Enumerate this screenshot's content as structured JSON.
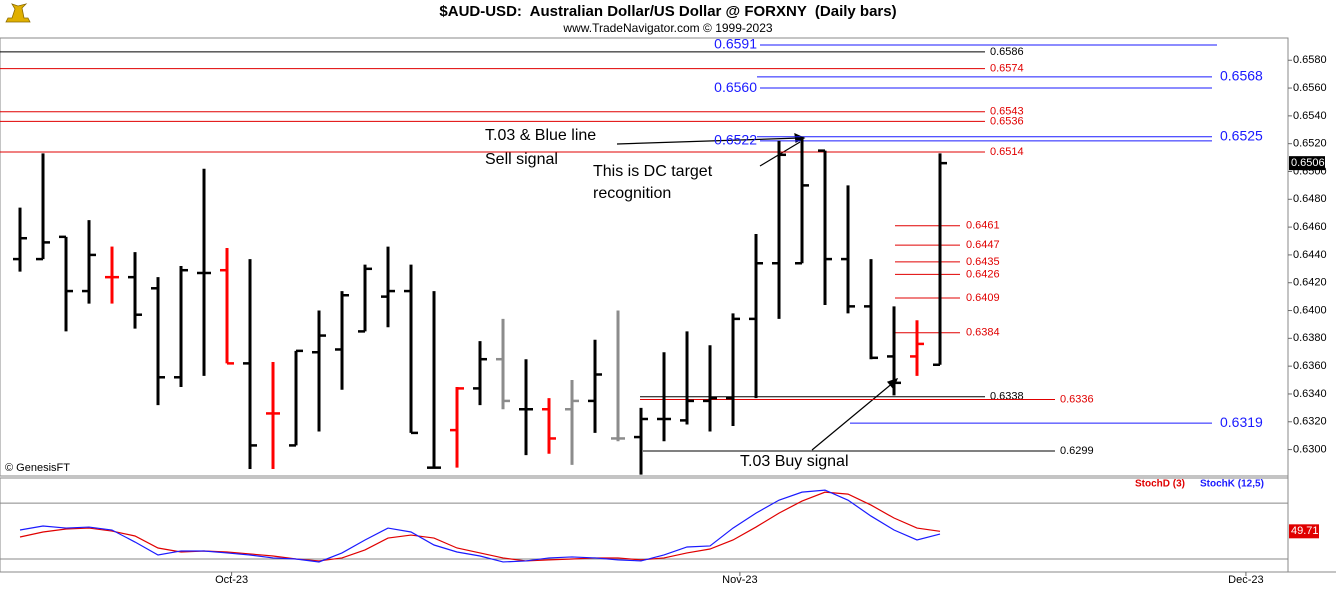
{
  "chart_data": [
    {
      "type": "ohlc",
      "title": "$AUD-USD:  Australian Dollar/US Dollar @ FORXNY  (Daily bars)",
      "subtitle": "www.TradeNavigator.com © 1999-2023",
      "credit": "© GenesisFT",
      "annotations": [
        "T.03 & Blue line",
        "Sell signal",
        "This is DC target",
        "recognition",
        "T.03 Buy signal"
      ],
      "xlim": [
        -0.87,
        55.13
      ],
      "xticks": [
        {
          "value": 9.2,
          "label": "Oct-23"
        },
        {
          "value": 31.3,
          "label": "Nov-23"
        },
        {
          "value": 53.3,
          "label": "Dec-23"
        }
      ],
      "ylim": [
        0.6281,
        0.6596
      ],
      "yticks": [
        {
          "value": 0.63,
          "label": "0.6300"
        },
        {
          "value": 0.632,
          "label": "0.6320"
        },
        {
          "value": 0.634,
          "label": "0.6340"
        },
        {
          "value": 0.636,
          "label": "0.6360"
        },
        {
          "value": 0.638,
          "label": "0.6380"
        },
        {
          "value": 0.64,
          "label": "0.6400"
        },
        {
          "value": 0.642,
          "label": "0.6420"
        },
        {
          "value": 0.644,
          "label": "0.6440"
        },
        {
          "value": 0.646,
          "label": "0.6460"
        },
        {
          "value": 0.648,
          "label": "0.6480"
        },
        {
          "value": 0.65,
          "label": "0.6500"
        },
        {
          "value": 0.652,
          "label": "0.6520"
        },
        {
          "value": 0.654,
          "label": "0.6540"
        },
        {
          "value": 0.656,
          "label": "0.6560"
        },
        {
          "value": 0.658,
          "label": "0.6580"
        }
      ],
      "open": [
        0.6437,
        0.6437,
        0.6453,
        0.6414,
        0.6424,
        0.6424,
        0.6416,
        0.6352,
        0.6427,
        0.6429,
        0.6362,
        0.6326,
        0.6303,
        0.637,
        0.6372,
        0.6385,
        0.641,
        0.6414,
        0.6287,
        0.6314,
        0.6344,
        0.6365,
        0.6329,
        0.6329,
        0.6329,
        0.6335,
        0.6308,
        0.6309,
        0.6322,
        0.6321,
        0.6335,
        0.6337,
        0.6394,
        0.6434,
        0.6434,
        0.6515,
        0.6437,
        0.6403,
        0.6367,
        0.6367,
        0.6361
      ],
      "high": [
        0.6474,
        0.6513,
        0.6453,
        0.6465,
        0.6446,
        0.6442,
        0.6424,
        0.6432,
        0.6502,
        0.6445,
        0.6437,
        0.6363,
        0.6371,
        0.64,
        0.6414,
        0.6433,
        0.6446,
        0.6433,
        0.6414,
        0.6345,
        0.6378,
        0.6394,
        0.6365,
        0.6337,
        0.635,
        0.6379,
        0.64,
        0.633,
        0.637,
        0.6385,
        0.6375,
        0.6398,
        0.6455,
        0.6522,
        0.6525,
        0.6515,
        0.649,
        0.6437,
        0.6403,
        0.6393,
        0.6513
      ],
      "low": [
        0.6428,
        0.6437,
        0.6385,
        0.6405,
        0.6405,
        0.6387,
        0.6332,
        0.6345,
        0.6353,
        0.6362,
        0.6286,
        0.6286,
        0.6303,
        0.6313,
        0.6343,
        0.6385,
        0.6388,
        0.6312,
        0.6287,
        0.6287,
        0.6332,
        0.6329,
        0.6296,
        0.6297,
        0.6289,
        0.6312,
        0.6306,
        0.6282,
        0.6306,
        0.6318,
        0.6313,
        0.6317,
        0.6337,
        0.6394,
        0.6434,
        0.6404,
        0.6398,
        0.6365,
        0.6339,
        0.6353,
        0.6361
      ],
      "close": [
        0.6452,
        0.6449,
        0.6414,
        0.644,
        0.6424,
        0.6397,
        0.6352,
        0.6429,
        0.6427,
        0.6362,
        0.6303,
        0.6326,
        0.6371,
        0.6382,
        0.6411,
        0.643,
        0.6414,
        0.6312,
        0.6287,
        0.6344,
        0.6365,
        0.6335,
        0.6329,
        0.6308,
        0.6335,
        0.6354,
        0.6308,
        0.6322,
        0.6322,
        0.6335,
        0.6337,
        0.6394,
        0.6434,
        0.6512,
        0.649,
        0.6437,
        0.6403,
        0.6366,
        0.6348,
        0.6376,
        0.6506
      ],
      "colors": [
        "#000000",
        "#000000",
        "#000000",
        "#000000",
        "#ff0000",
        "#000000",
        "#000000",
        "#000000",
        "#000000",
        "#ff0000",
        "#000000",
        "#ff0000",
        "#000000",
        "#000000",
        "#000000",
        "#000000",
        "#000000",
        "#000000",
        "#000000",
        "#ff0000",
        "#000000",
        "#8c8c8c",
        "#000000",
        "#ff0000",
        "#8c8c8c",
        "#000000",
        "#8c8c8c",
        "#000000",
        "#000000",
        "#000000",
        "#000000",
        "#000000",
        "#000000",
        "#000000",
        "#000000",
        "#000000",
        "#000000",
        "#000000",
        "#000000",
        "#ff0000",
        "#000000"
      ],
      "levels": [
        {
          "value": 0.6591,
          "color": "#1a1aff"
        },
        {
          "value": 0.6586,
          "color": "#000000"
        },
        {
          "value": 0.6574,
          "color": "#e00000"
        },
        {
          "value": 0.6568,
          "color": "#1a1aff"
        },
        {
          "value": 0.656,
          "label": "0.6560",
          "color": "#1a1aff"
        },
        {
          "value": 0.6543,
          "color": "#e00000"
        },
        {
          "value": 0.6536,
          "color": "#e00000"
        },
        {
          "value": 0.6525,
          "color": "#1a1aff"
        },
        {
          "value": 0.6522,
          "color": "#1a1aff"
        },
        {
          "value": 0.6514,
          "color": "#e00000"
        },
        {
          "value": 0.6461,
          "color": "#e00000"
        },
        {
          "value": 0.6447,
          "color": "#e00000"
        },
        {
          "value": 0.6435,
          "color": "#e00000"
        },
        {
          "value": 0.6426,
          "color": "#e00000"
        },
        {
          "value": 0.6409,
          "color": "#e00000"
        },
        {
          "value": 0.6384,
          "color": "#e00000"
        },
        {
          "value": 0.6338,
          "color": "#000000"
        },
        {
          "value": 0.6336,
          "color": "#e00000"
        },
        {
          "value": 0.6319,
          "color": "#1a1aff"
        },
        {
          "value": 0.6299,
          "color": "#000000"
        }
      ]
    },
    {
      "type": "line",
      "ylim": [
        6,
        107
      ],
      "reference_lines": [
        20,
        80
      ],
      "series": [
        {
          "name": "StochD (3)",
          "color": "#e00000",
          "values": [
            43.6,
            49.0,
            52.2,
            53.2,
            50.0,
            44.7,
            31.8,
            27.5,
            28.6,
            27.5,
            25.4,
            23.2,
            20.0,
            17.9,
            21.1,
            29.7,
            42.5,
            45.7,
            42.5,
            31.8,
            26.5,
            21.1,
            17.9,
            19.0,
            20.0,
            21.1,
            21.1,
            19.0,
            21.1,
            26.5,
            30.7,
            40.4,
            54.3,
            69.3,
            82.2,
            91.8,
            89.7,
            77.9,
            64.0,
            53.2,
            49.71
          ]
        },
        {
          "name": "StochK (12,5)",
          "color": "#1a1aff",
          "values": [
            51.1,
            55.4,
            53.2,
            54.3,
            51.1,
            38.2,
            24.3,
            28.6,
            28.6,
            26.5,
            24.3,
            21.1,
            20.0,
            16.8,
            26.5,
            40.4,
            53.2,
            49.0,
            35.0,
            27.5,
            23.2,
            16.8,
            17.9,
            21.1,
            22.2,
            21.1,
            19.0,
            17.9,
            24.3,
            32.9,
            34.0,
            53.2,
            69.3,
            83.2,
            91.8,
            94.0,
            83.2,
            66.1,
            51.1,
            40.4,
            46.8
          ]
        }
      ]
    }
  ]
}
